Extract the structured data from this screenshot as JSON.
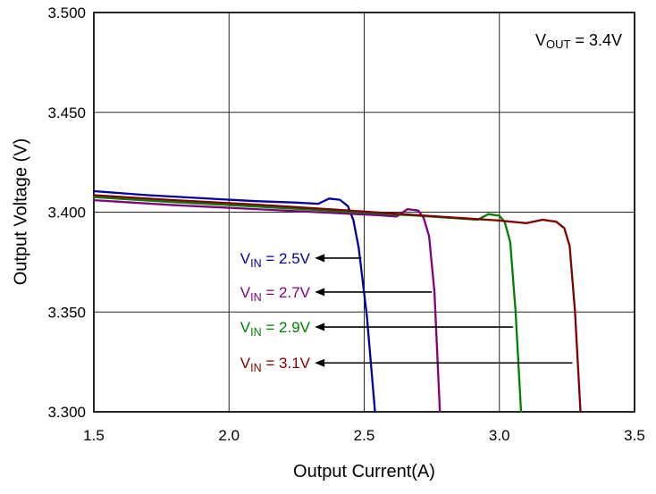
{
  "chart_data": {
    "type": "line",
    "title": "",
    "xlabel": "Output Current(A)",
    "ylabel": "Output Voltage (V)",
    "xlim": [
      1.5,
      3.5
    ],
    "ylim": [
      3.3,
      3.5
    ],
    "grid": true,
    "legend_position": "none",
    "xticks": [
      {
        "value": 1.5,
        "label": "1.5"
      },
      {
        "value": 2.0,
        "label": "2.0"
      },
      {
        "value": 2.5,
        "label": "2.5"
      },
      {
        "value": 3.0,
        "label": "3.0"
      },
      {
        "value": 3.5,
        "label": "3.5"
      }
    ],
    "yticks": [
      {
        "value": 3.3,
        "label": "3.300"
      },
      {
        "value": 3.35,
        "label": "3.350"
      },
      {
        "value": 3.4,
        "label": "3.400"
      },
      {
        "value": 3.45,
        "label": "3.450"
      },
      {
        "value": 3.5,
        "label": "3.500"
      }
    ],
    "annotation": {
      "pre": "V",
      "sub": "OUT",
      "post": " = 3.4V",
      "color": "#000000"
    },
    "series": [
      {
        "name": "VIN = 2.5V",
        "label": {
          "pre": "V",
          "sub": "IN",
          "post": " = 2.5V"
        },
        "color": "#0000A0",
        "points": [
          [
            1.5,
            3.4105
          ],
          [
            1.7,
            3.4085
          ],
          [
            1.9,
            3.407
          ],
          [
            2.1,
            3.4055
          ],
          [
            2.25,
            3.4048
          ],
          [
            2.33,
            3.4042
          ],
          [
            2.37,
            3.4068
          ],
          [
            2.41,
            3.4062
          ],
          [
            2.44,
            3.403
          ],
          [
            2.46,
            3.396
          ],
          [
            2.48,
            3.382
          ],
          [
            2.51,
            3.348
          ],
          [
            2.54,
            3.3
          ]
        ],
        "callout": {
          "text_x": 2.3,
          "arrow_x_start": 2.317,
          "arrow_x_end": 2.49,
          "arrow_y": 3.377
        }
      },
      {
        "name": "VIN = 2.7V",
        "label": {
          "pre": "V",
          "sub": "IN",
          "post": " = 2.7V"
        },
        "color": "#800080",
        "points": [
          [
            1.5,
            3.406
          ],
          [
            1.8,
            3.4035
          ],
          [
            2.1,
            3.4015
          ],
          [
            2.4,
            3.3995
          ],
          [
            2.55,
            3.3985
          ],
          [
            2.62,
            3.3978
          ],
          [
            2.66,
            3.4015
          ],
          [
            2.7,
            3.4008
          ],
          [
            2.72,
            3.397
          ],
          [
            2.74,
            3.388
          ],
          [
            2.76,
            3.36
          ],
          [
            2.78,
            3.3
          ]
        ],
        "callout": {
          "text_x": 2.3,
          "arrow_x_start": 2.317,
          "arrow_x_end": 2.75,
          "arrow_y": 3.36
        }
      },
      {
        "name": "VIN = 2.9V",
        "label": {
          "pre": "V",
          "sub": "IN",
          "post": " = 2.9V"
        },
        "color": "#008000",
        "points": [
          [
            1.5,
            3.4075
          ],
          [
            1.8,
            3.405
          ],
          [
            2.1,
            3.4028
          ],
          [
            2.4,
            3.4005
          ],
          [
            2.7,
            3.3982
          ],
          [
            2.86,
            3.3968
          ],
          [
            2.92,
            3.3962
          ],
          [
            2.96,
            3.399
          ],
          [
            3.0,
            3.3982
          ],
          [
            3.02,
            3.395
          ],
          [
            3.04,
            3.385
          ],
          [
            3.06,
            3.35
          ],
          [
            3.08,
            3.3
          ]
        ],
        "callout": {
          "text_x": 2.3,
          "arrow_x_start": 2.317,
          "arrow_x_end": 3.05,
          "arrow_y": 3.3425
        }
      },
      {
        "name": "VIN = 3.1V",
        "label": {
          "pre": "V",
          "sub": "IN",
          "post": " = 3.1V"
        },
        "color": "#800000",
        "points": [
          [
            1.5,
            3.4085
          ],
          [
            1.8,
            3.406
          ],
          [
            2.1,
            3.4038
          ],
          [
            2.4,
            3.4012
          ],
          [
            2.7,
            3.3985
          ],
          [
            3.0,
            3.3958
          ],
          [
            3.1,
            3.3945
          ],
          [
            3.16,
            3.3962
          ],
          [
            3.21,
            3.3952
          ],
          [
            3.24,
            3.392
          ],
          [
            3.26,
            3.383
          ],
          [
            3.28,
            3.35
          ],
          [
            3.3,
            3.3
          ]
        ],
        "callout": {
          "text_x": 2.3,
          "arrow_x_start": 2.317,
          "arrow_x_end": 3.27,
          "arrow_y": 3.3245
        }
      }
    ]
  }
}
